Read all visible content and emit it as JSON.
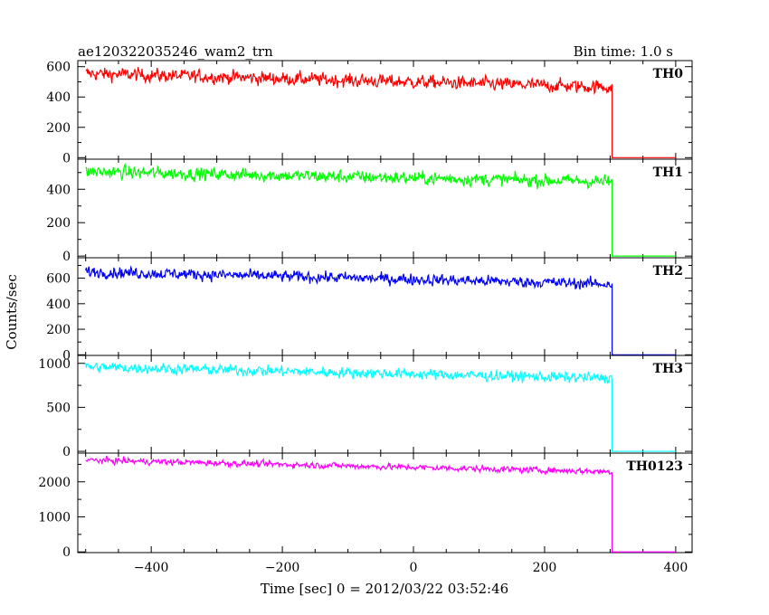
{
  "header": {
    "title": "ae120322035246_wam2_trn",
    "bin_time": "Bin time: 1.0 s"
  },
  "chart_data": {
    "type": "line",
    "xlabel": "Time [sec] 0 = 2012/03/22 03:52:46",
    "ylabel": "Counts/sec",
    "xlim": [
      -512,
      425
    ],
    "x_ticks": [
      -400,
      -200,
      0,
      200,
      400
    ],
    "x_tick_labels": [
      "−400",
      "−200",
      "0",
      "200",
      "400"
    ],
    "drop_time": 303,
    "grid": false,
    "panels": [
      {
        "name": "TH0",
        "color": "#ff0000",
        "ylim": [
          -10,
          640
        ],
        "y_ticks": [
          0,
          200,
          400,
          600
        ],
        "start_level": 555,
        "end_level": 465,
        "noise": 55,
        "x_start": -500,
        "x_end": 303
      },
      {
        "name": "TH1",
        "color": "#00ff00",
        "ylim": [
          -10,
          580
        ],
        "y_ticks": [
          0,
          200,
          400
        ],
        "start_level": 505,
        "end_level": 445,
        "noise": 48,
        "x_start": -500,
        "x_end": 303
      },
      {
        "name": "TH2",
        "color": "#0000ff",
        "ylim": [
          -5,
          760
        ],
        "y_ticks": [
          0,
          200,
          400,
          600
        ],
        "start_level": 650,
        "end_level": 555,
        "noise": 55,
        "x_start": -500,
        "x_end": 303
      },
      {
        "name": "TH3",
        "color": "#00ffff",
        "ylim": [
          -20,
          1090
        ],
        "y_ticks": [
          0,
          500,
          1000
        ],
        "start_level": 960,
        "end_level": 830,
        "noise": 75,
        "x_start": -500,
        "x_end": 303
      },
      {
        "name": "TH0123",
        "color": "#ff00ff",
        "ylim": [
          -20,
          2820
        ],
        "y_ticks": [
          0,
          1000,
          2000
        ],
        "start_level": 2620,
        "end_level": 2290,
        "noise": 110,
        "x_start": -500,
        "x_end": 303
      }
    ]
  }
}
